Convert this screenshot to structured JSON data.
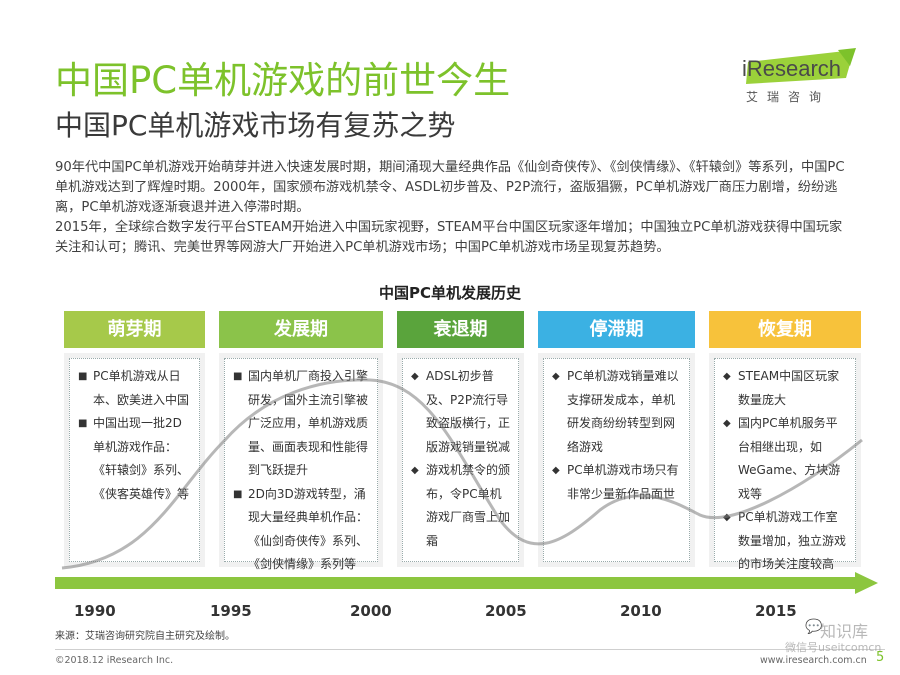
{
  "header": {
    "title": "中国PC单机游戏的前世今生",
    "subtitle": "中国PC单机游戏市场有复苏之势"
  },
  "logo": {
    "text": "iResearch",
    "cn": "艾瑞咨询",
    "accent_color": "#7dc22b"
  },
  "intro": {
    "p1": "90年代中国PC单机游戏开始萌芽并进入快速发展时期，期间涌现大量经典作品《仙剑奇侠传》、《剑侠情缘》、《轩辕剑》等系列，中国PC单机游戏达到了辉煌时期。2000年，国家颁布游戏机禁令、ASDL初步普及、P2P流行，盗版猖獗，PC单机游戏厂商压力剧增，纷纷逃离，PC单机游戏逐渐衰退并进入停滞时期。",
    "p2": "2015年，全球综合数字发行平台STEAM开始进入中国玩家视野，STEAM平台中国区玩家逐年增加；中国独立PC单机游戏获得中国玩家关注和认可；腾讯、完美世界等网游大厂开始进入PC单机游戏市场；中国PC单机游戏市场呈现复苏趋势。"
  },
  "timeline": {
    "title": "中国PC单机发展历史",
    "phases": [
      {
        "label": "萌芽期",
        "color": "#a6c94a",
        "bullet": "■",
        "items": [
          "PC单机游戏从日本、欧美进入中国",
          "中国出现一批2D单机游戏作品：《轩辕剑》系列、《侠客英雄传》等"
        ]
      },
      {
        "label": "发展期",
        "color": "#8bc34a",
        "bullet": "■",
        "items": [
          "国内单机厂商投入引擎研发，国外主流引擎被广泛应用，单机游戏质量、画面表现和性能得到飞跃提升",
          "2D向3D游戏转型，涌现大量经典单机作品：《仙剑奇侠传》系列、《剑侠情缘》系列等"
        ]
      },
      {
        "label": "衰退期",
        "color": "#5aa43c",
        "bullet": "◆",
        "items": [
          "ADSL初步普及、P2P流行导致盗版横行，正版游戏销量锐减",
          "游戏机禁令的颁布，令PC单机游戏厂商雪上加霜"
        ]
      },
      {
        "label": "停滞期",
        "color": "#3bb1e3",
        "bullet": "◆",
        "items": [
          "PC单机游戏销量难以支撑研发成本，单机研发商纷纷转型到网络游戏",
          "PC单机游戏市场只有非常少量新作品面世"
        ]
      },
      {
        "label": "恢复期",
        "color": "#f7c23b",
        "bullet": "◆",
        "items": [
          "STEAM中国区玩家数量庞大",
          "国内PC单机服务平台相继出现，如WeGame、方块游戏等",
          "PC单机游戏工作室数量增加，独立游戏的市场关注度较高"
        ]
      }
    ],
    "years": [
      "1990",
      "1995",
      "2000",
      "2005",
      "2010",
      "2015"
    ],
    "arrow_color": "#8cc63f"
  },
  "footer": {
    "source": "来源：艾瑞咨询研究院自主研究及绘制。",
    "copyright": "©2018.12 iResearch Inc.",
    "site": "www.iresearch.com.cn",
    "page": "5"
  },
  "watermark": {
    "main": "知识库",
    "sub": "微信号useitcomcn"
  }
}
